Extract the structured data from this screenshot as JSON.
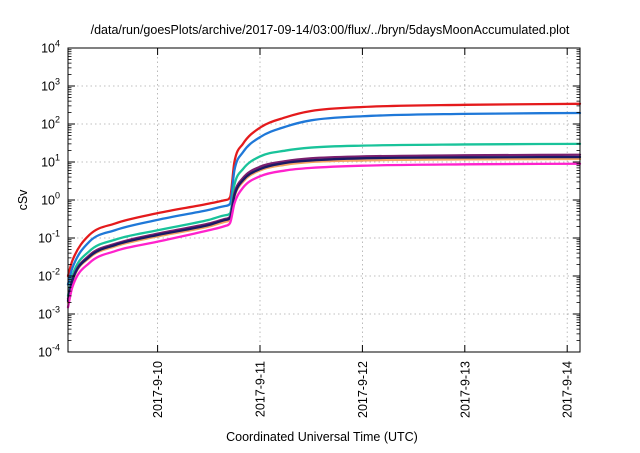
{
  "chart_data": {
    "type": "line",
    "title": "/data/run/goesPlots/archive/2017-09-14/03:00/flux/../bryn/5daysMoonAccumulated.plot",
    "xlabel": "Coordinated Universal Time (UTC)",
    "ylabel": "cSv",
    "y_scale": "log",
    "ylim": [
      0.0001,
      10000
    ],
    "xlim": [
      "2017-09-09T03:00",
      "2017-09-14T03:00"
    ],
    "grid": true,
    "x_ticks": [
      "2017-9-10",
      "2017-9-11",
      "2017-9-12",
      "2017-9-13",
      "2017-9-14"
    ],
    "y_ticks": [
      {
        "base": "10",
        "exp": "-4"
      },
      {
        "base": "10",
        "exp": "-3"
      },
      {
        "base": "10",
        "exp": "-2"
      },
      {
        "base": "10",
        "exp": "-1"
      },
      {
        "base": "10",
        "exp": "0"
      },
      {
        "base": "10",
        "exp": "1"
      },
      {
        "base": "10",
        "exp": "2"
      },
      {
        "base": "10",
        "exp": "3"
      },
      {
        "base": "10",
        "exp": "4"
      }
    ],
    "x": [
      "2017-09-09T03:00",
      "2017-09-09T04:00",
      "2017-09-09T08:00",
      "2017-09-09T14:00",
      "2017-09-10T00:00",
      "2017-09-10T12:00",
      "2017-09-10T16:00",
      "2017-09-10T17:00",
      "2017-09-10T18:00",
      "2017-09-10T20:00",
      "2017-09-11T00:00",
      "2017-09-11T06:00",
      "2017-09-11T12:00",
      "2017-09-12T00:00",
      "2017-09-13T00:00",
      "2017-09-14T03:00"
    ],
    "series": [
      {
        "color": "#e41a1c",
        "values": [
          0.01,
          0.025,
          0.12,
          0.24,
          0.45,
          0.8,
          1.0,
          1.2,
          10,
          30,
          80,
          150,
          220,
          280,
          320,
          340
        ]
      },
      {
        "color": "#1f78d8",
        "values": [
          0.006,
          0.016,
          0.08,
          0.16,
          0.3,
          0.55,
          0.7,
          0.8,
          6,
          18,
          45,
          85,
          125,
          160,
          185,
          195
        ]
      },
      {
        "color": "#19c39a",
        "values": [
          0.003,
          0.01,
          0.045,
          0.09,
          0.16,
          0.3,
          0.4,
          0.45,
          2.5,
          6.5,
          14,
          20,
          24,
          27,
          29,
          30
        ]
      },
      {
        "color": "#7a1f6e",
        "values": [
          0.0025,
          0.008,
          0.035,
          0.07,
          0.13,
          0.24,
          0.32,
          0.37,
          1.5,
          3.8,
          7.5,
          10.5,
          12.5,
          14,
          15,
          15.5
        ]
      },
      {
        "color": "#f4a460",
        "values": [
          0.002,
          0.007,
          0.03,
          0.06,
          0.11,
          0.2,
          0.27,
          0.31,
          1.2,
          3.0,
          6.0,
          8.5,
          10,
          11,
          11.7,
          12
        ]
      },
      {
        "color": "#1a1a66",
        "values": [
          0.0022,
          0.0075,
          0.032,
          0.065,
          0.12,
          0.22,
          0.3,
          0.34,
          1.3,
          3.3,
          6.5,
          9.5,
          11,
          12.5,
          13.2,
          13.5
        ]
      },
      {
        "color": "#ff22cc",
        "values": [
          0.0015,
          0.005,
          0.022,
          0.045,
          0.08,
          0.16,
          0.21,
          0.25,
          0.8,
          2.1,
          4.2,
          6.0,
          7.0,
          8.0,
          8.7,
          9.0
        ]
      }
    ]
  }
}
